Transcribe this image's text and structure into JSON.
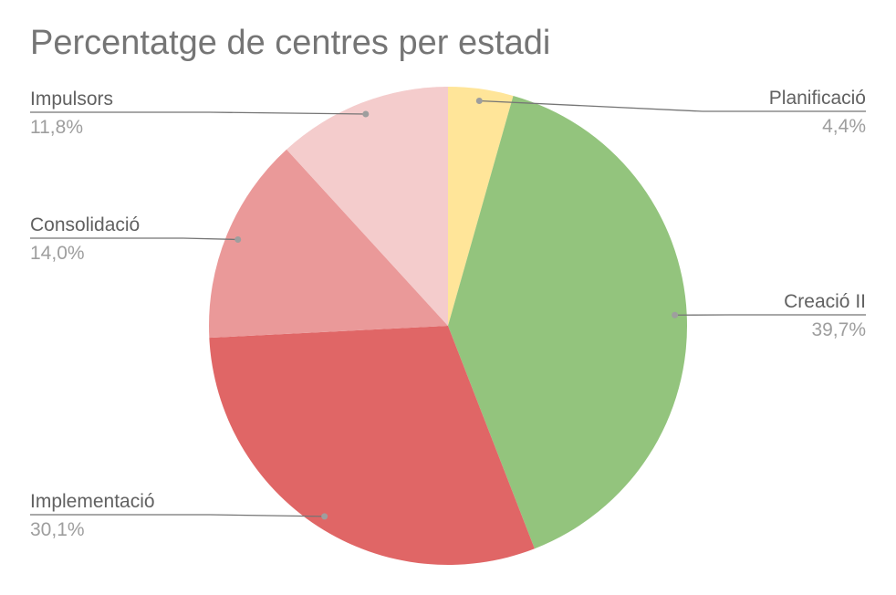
{
  "chart_data": {
    "type": "pie",
    "title": "Percentatge de centres per estadi",
    "slices": [
      {
        "label": "Planificació",
        "value": 4.4,
        "value_label": "4,4%",
        "color": "#ffe599"
      },
      {
        "label": "Creació II",
        "value": 39.7,
        "value_label": "39,7%",
        "color": "#93c47d"
      },
      {
        "label": "Implementació",
        "value": 30.1,
        "value_label": "30,1%",
        "color": "#e06666"
      },
      {
        "label": "Consolidació",
        "value": 14.0,
        "value_label": "14,0%",
        "color": "#ea9999"
      },
      {
        "label": "Impulsors",
        "value": 11.8,
        "value_label": "11,8%",
        "color": "#f4cccc"
      }
    ],
    "start_angle": "12 o'clock",
    "direction": "clockwise",
    "leader_line_color": "#757575"
  }
}
